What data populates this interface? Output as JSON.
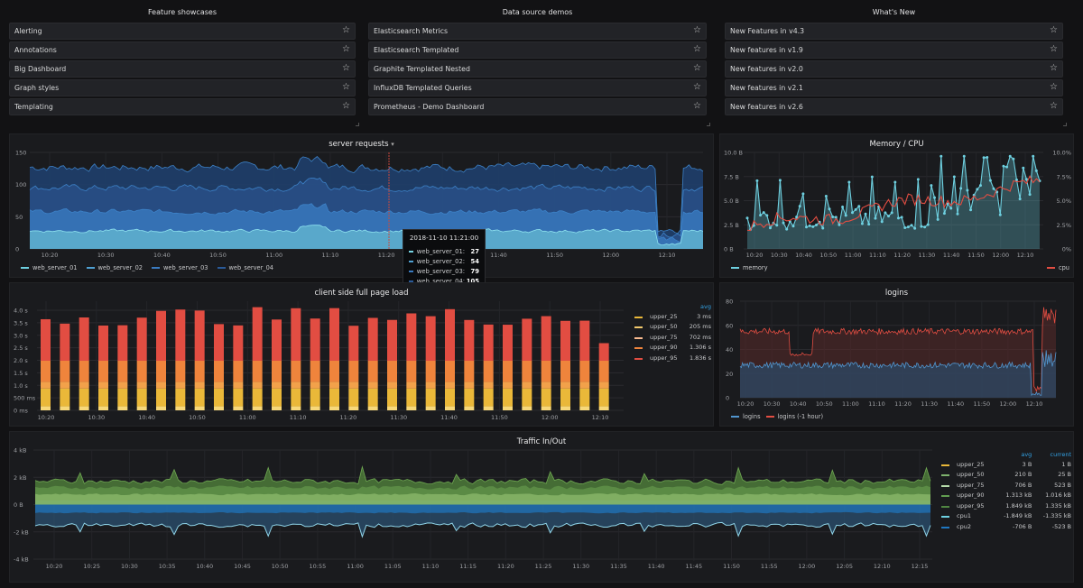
{
  "lists": [
    {
      "title": "Feature showcases",
      "items": [
        "Alerting",
        "Annotations",
        "Big Dashboard",
        "Graph styles",
        "Templating"
      ]
    },
    {
      "title": "Data source demos",
      "items": [
        "Elasticsearch Metrics",
        "Elasticsearch Templated",
        "Graphite Templated Nested",
        "InfluxDB Templated Queries",
        "Prometheus - Demo Dashboard"
      ]
    },
    {
      "title": "What's New",
      "items": [
        "New Features in v4.3",
        "New features in v1.9",
        "New features in v2.0",
        "New features in v2.1",
        "New features in v2.6"
      ]
    }
  ],
  "panels": {
    "server_requests": {
      "title": "server requests",
      "caret": "▾",
      "y_ticks": [
        "150",
        "100",
        "50",
        "0"
      ],
      "x_ticks": [
        "10:20",
        "10:30",
        "10:40",
        "10:50",
        "11:00",
        "11:10",
        "11:20",
        "11:30",
        "11:40",
        "11:50",
        "12:00",
        "12:10"
      ],
      "legend": [
        {
          "name": "web_server_01",
          "color": "#7eb26d"
        },
        {
          "name": "web_server_02",
          "color": "#6ed0e0"
        },
        {
          "name": "web_server_03",
          "color": "#3f6a9d"
        },
        {
          "name": "web_server_04",
          "color": "#2f5a8f"
        }
      ],
      "tooltip": {
        "time": "2018-11-10 11:21:00",
        "rows": [
          {
            "name": "web_server_01:",
            "value": "27",
            "color": "#76d3e3"
          },
          {
            "name": "web_server_02:",
            "value": "54",
            "color": "#4fa0d2"
          },
          {
            "name": "web_server_03:",
            "value": "79",
            "color": "#3a7bc0"
          },
          {
            "name": "web_server_04:",
            "value": "105",
            "color": "#2a5a98"
          }
        ]
      }
    },
    "memory_cpu": {
      "title": "Memory / CPU",
      "y_left": [
        "10.0 B",
        "7.5 B",
        "5.0 B",
        "2.5 B",
        "0 B"
      ],
      "y_right": [
        "10.0%",
        "7.5%",
        "5.0%",
        "2.5%",
        "0%"
      ],
      "x_ticks": [
        "10:20",
        "10:30",
        "10:40",
        "10:50",
        "11:00",
        "11:10",
        "11:20",
        "11:30",
        "11:40",
        "11:50",
        "12:00",
        "12:10"
      ],
      "legend_left": {
        "name": "memory",
        "color": "#6ed0e0"
      },
      "legend_right": {
        "name": "cpu",
        "color": "#e24d42"
      }
    },
    "page_load": {
      "title": "client side full page load",
      "y_ticks": [
        "4.0 s",
        "3.5 s",
        "3.0 s",
        "2.5 s",
        "2.0 s",
        "1.5 s",
        "1.0 s",
        "500 ms",
        "0 ms"
      ],
      "x_ticks": [
        "10:20",
        "10:30",
        "10:40",
        "10:50",
        "11:00",
        "11:10",
        "11:20",
        "11:30",
        "11:40",
        "11:50",
        "12:00",
        "12:10"
      ],
      "legend_header": "avg",
      "legend": [
        {
          "name": "upper_25",
          "avg": "3 ms",
          "color": "#eab839"
        },
        {
          "name": "upper_50",
          "avg": "205 ms",
          "color": "#f2c96d"
        },
        {
          "name": "upper_75",
          "avg": "702 ms",
          "color": "#f9ba8f"
        },
        {
          "name": "upper_90",
          "avg": "1.306 s",
          "color": "#ef843c"
        },
        {
          "name": "upper_95",
          "avg": "1.836 s",
          "color": "#e24d42"
        }
      ]
    },
    "logins": {
      "title": "logins",
      "y_ticks": [
        "80",
        "60",
        "40",
        "20",
        "0"
      ],
      "x_ticks": [
        "10:20",
        "10:30",
        "10:40",
        "10:50",
        "11:00",
        "11:10",
        "11:20",
        "11:30",
        "11:40",
        "11:50",
        "12:00",
        "12:10"
      ],
      "legend": [
        {
          "name": "logins",
          "color": "#5195ce"
        },
        {
          "name": "logins (-1 hour)",
          "color": "#e24d42"
        }
      ]
    },
    "traffic": {
      "title": "Traffic In/Out",
      "y_ticks": [
        "4 kB",
        "2 kB",
        "0 B",
        "-2 kB",
        "-4 kB"
      ],
      "x_ticks": [
        "10:20",
        "10:25",
        "10:30",
        "10:35",
        "10:40",
        "10:45",
        "10:50",
        "10:55",
        "11:00",
        "11:05",
        "11:10",
        "11:15",
        "11:20",
        "11:25",
        "11:30",
        "11:35",
        "11:40",
        "11:45",
        "11:50",
        "11:55",
        "12:00",
        "12:05",
        "12:10",
        "12:15"
      ],
      "legend_headers": {
        "avg": "avg",
        "current": "current"
      },
      "legend": [
        {
          "name": "upper_25",
          "avg": "3 B",
          "current": "1 B",
          "color": "#eab839"
        },
        {
          "name": "upper_50",
          "avg": "210 B",
          "current": "25 B",
          "color": "#7eb26d"
        },
        {
          "name": "upper_75",
          "avg": "706 B",
          "current": "523 B",
          "color": "#b7dbab"
        },
        {
          "name": "upper_90",
          "avg": "1.313 kB",
          "current": "1.016 kB",
          "color": "#629e51"
        },
        {
          "name": "upper_95",
          "avg": "1.849 kB",
          "current": "1.335 kB",
          "color": "#508642"
        },
        {
          "name": "cpu1",
          "avg": "-1.849 kB",
          "current": "-1.335 kB",
          "color": "#6ed0e0"
        },
        {
          "name": "cpu2",
          "avg": "-706 B",
          "current": "-523 B",
          "color": "#1f78c1"
        }
      ]
    }
  }
}
